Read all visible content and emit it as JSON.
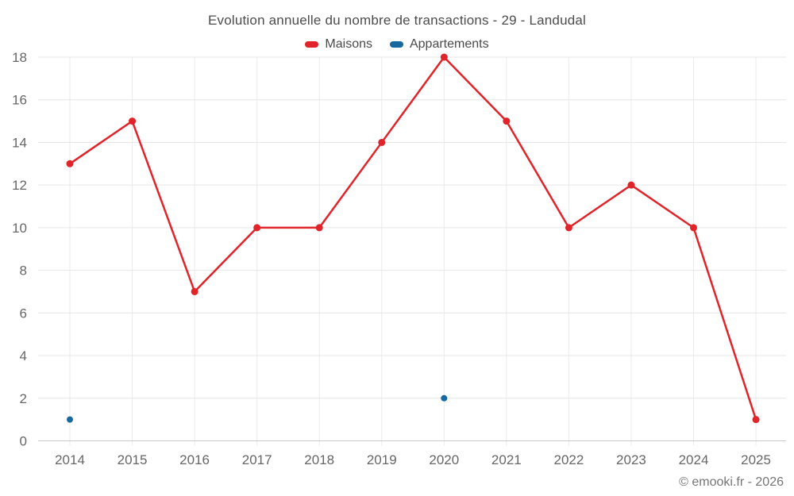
{
  "chart_data": {
    "type": "line",
    "title": "Evolution annuelle du nombre de transactions - 29 - Landudal",
    "xlabel": "",
    "ylabel": "",
    "categories": [
      "2014",
      "2015",
      "2016",
      "2017",
      "2018",
      "2019",
      "2020",
      "2021",
      "2022",
      "2023",
      "2024",
      "2025"
    ],
    "series": [
      {
        "name": "Maisons",
        "color": "#e0242a",
        "marker_radius": 4.5,
        "values": [
          13,
          15,
          7,
          10,
          10,
          14,
          18,
          15,
          10,
          12,
          10,
          1
        ]
      },
      {
        "name": "Appartements",
        "color": "#17699f",
        "marker_radius": 4,
        "values": [
          1,
          null,
          null,
          null,
          null,
          null,
          2,
          null,
          null,
          null,
          null,
          null
        ]
      }
    ],
    "ylim": [
      0,
      18
    ],
    "y_tick_step": 2,
    "grid": true,
    "legend_position": "top",
    "axis_label_color": "#666666",
    "grid_color_horizontal": "#e6e6e6",
    "grid_color_vertical": "#ebebeb",
    "axis_line_color": "#c9c9c9",
    "copyright": "© emooki.fr - 2026"
  }
}
